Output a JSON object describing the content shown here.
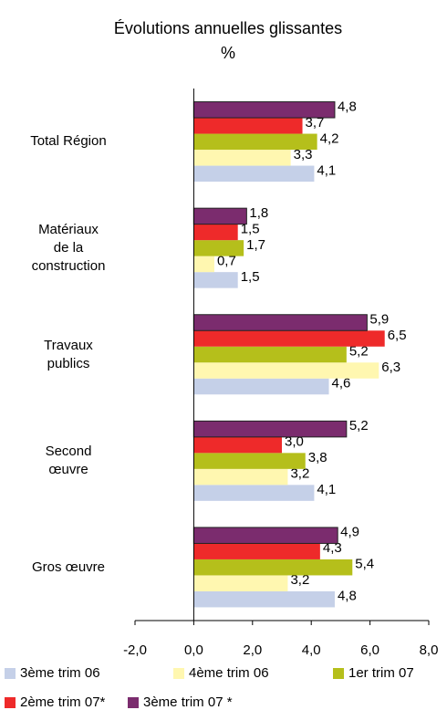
{
  "chart_data": {
    "type": "barh",
    "title": "Évolutions annuelles glissantes",
    "subtitle": "%",
    "categories": [
      "Total Région",
      "Matériaux\nde la\nconstruction",
      "Travaux\npublics",
      "Second\nœuvre",
      "Gros œuvre"
    ],
    "series": [
      {
        "name": "3ème trim 06",
        "color": "#c5d0e8",
        "values": [
          4.1,
          1.5,
          4.6,
          4.1,
          4.8
        ],
        "value_labels": [
          "4,1",
          "1,5",
          "4,6",
          "4,1",
          "4,8"
        ]
      },
      {
        "name": "4ème trim 06",
        "color": "#fff7b0",
        "values": [
          3.3,
          0.7,
          6.3,
          3.2,
          3.2
        ],
        "value_labels": [
          "3,3",
          "0,7",
          "6,3",
          "3,2",
          "3,2"
        ]
      },
      {
        "name": "1er trim 07",
        "color": "#b5bf1b",
        "values": [
          4.2,
          1.7,
          5.2,
          3.8,
          5.4
        ],
        "value_labels": [
          "4,2",
          "1,7",
          "5,2",
          "3,8",
          "5,4"
        ]
      },
      {
        "name": "2ème trim 07*",
        "color": "#ee2a2a",
        "values": [
          3.7,
          1.5,
          6.5,
          3.0,
          4.3
        ],
        "value_labels": [
          "3,7",
          "1,5",
          "6,5",
          "3,0",
          "4,3"
        ]
      },
      {
        "name": "3ème trim 07 *",
        "color": "#7b2c6e",
        "values": [
          4.8,
          1.8,
          5.9,
          5.2,
          4.9
        ],
        "value_labels": [
          "4,8",
          "1,8",
          "5,9",
          "5,2",
          "4,9"
        ]
      }
    ],
    "xlim": [
      -2,
      8
    ],
    "xticks": [
      {
        "value": -2,
        "label": "-2,0"
      },
      {
        "value": 0,
        "label": "0,0"
      },
      {
        "value": 2,
        "label": "2,0"
      },
      {
        "value": 4,
        "label": "4,0"
      },
      {
        "value": 6,
        "label": "6,0"
      },
      {
        "value": 8,
        "label": "8,0"
      }
    ]
  }
}
